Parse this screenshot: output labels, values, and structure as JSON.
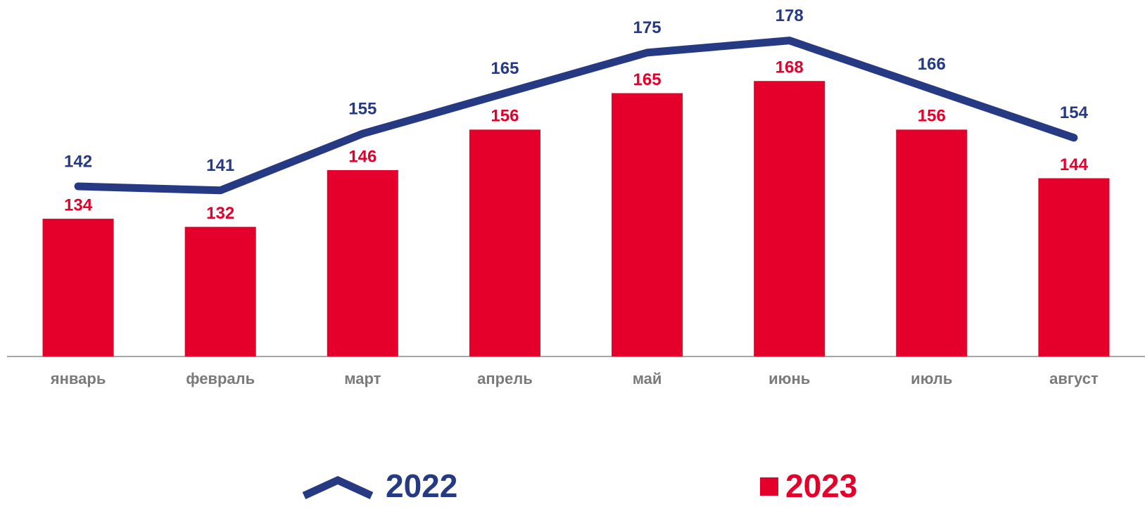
{
  "chart_data": {
    "type": "bar",
    "categories": [
      "январь",
      "февраль",
      "март",
      "апрель",
      "май",
      "июнь",
      "июль",
      "август"
    ],
    "series": [
      {
        "name": "2022",
        "type": "line",
        "color": "#263a84",
        "values": [
          142,
          141,
          155,
          165,
          175,
          178,
          166,
          154
        ]
      },
      {
        "name": "2023",
        "type": "bar",
        "color": "#e4002b",
        "values": [
          134,
          132,
          146,
          156,
          165,
          168,
          156,
          144
        ]
      }
    ],
    "ylim": [
      100,
      188
    ],
    "legend": "bottom"
  }
}
